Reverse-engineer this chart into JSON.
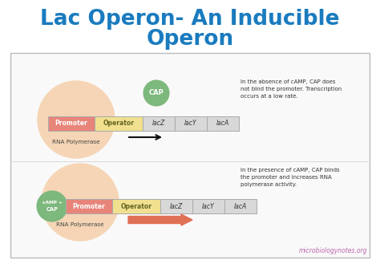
{
  "title_line1": "Lac Operon- An Inducible",
  "title_line2": "Operon",
  "title_color": "#1a7bbf",
  "bg_color": "#ffffff",
  "box_bg": "#f9f9f9",
  "box_border": "#aaaaaa",
  "peach_circle_color": "#f5d5b5",
  "promoter_color": "#e8857a",
  "operator_color": "#f0e090",
  "gene_color": "#d8d8d8",
  "cap_circle_color": "#7db87d",
  "cap_border_color": "#5a9a5a",
  "camp_cap_color": "#7db87d",
  "text_color": "#333333",
  "arrow1_color": "#111111",
  "arrow2_color": "#e07055",
  "watermark_color": "#bb66aa",
  "annotation1": "In the absence of cAMP, CAP does\nnot bind the promoter. Transcription\noccurs at a low rate.",
  "annotation2": "In the presence of cAMP, CAP binds\nthe promoter and increases RNA\npolymerase activity.",
  "watermark": "microbiologynotes.org",
  "gene_labels": [
    "lacZ",
    "lacY",
    "lacA"
  ]
}
